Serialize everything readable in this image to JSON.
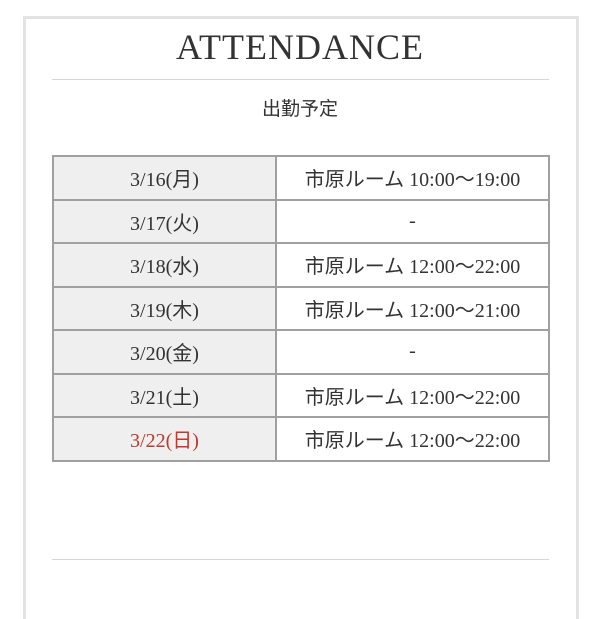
{
  "title": "ATTENDANCE",
  "subtitle": "出勤予定",
  "colors": {
    "sunday": "#c0392b",
    "date_bg": "#efefef",
    "border": "#a0a0a0"
  },
  "schedule": [
    {
      "date": "3/16(月)",
      "shift": "市原ルーム 10:00〜19:00"
    },
    {
      "date": "3/17(火)",
      "shift": "-"
    },
    {
      "date": "3/18(水)",
      "shift": "市原ルーム 12:00〜22:00"
    },
    {
      "date": "3/19(木)",
      "shift": "市原ルーム 12:00〜21:00"
    },
    {
      "date": "3/20(金)",
      "shift": "-"
    },
    {
      "date": "3/21(土)",
      "shift": "市原ルーム 12:00〜22:00"
    },
    {
      "date": "3/22(日)",
      "shift": "市原ルーム 12:00〜22:00"
    }
  ]
}
